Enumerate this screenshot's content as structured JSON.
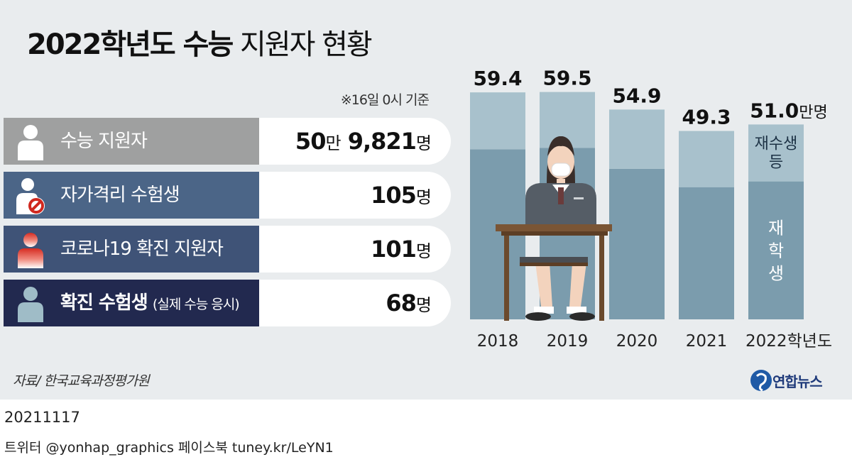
{
  "title": {
    "year": "2022학년도",
    "bold": "수능",
    "rest": "지원자 현황"
  },
  "basis_note": "※16일 0시 기준",
  "stats": [
    {
      "label": "수능 지원자",
      "value_prefix": "50",
      "value_prefix_unit": "만",
      "value": "9,821",
      "unit": "명",
      "color": "#9fa0a0"
    },
    {
      "label": "자가격리 수험생",
      "value": "105",
      "unit": "명",
      "color": "#4b6587"
    },
    {
      "label": "코로나19 확진 지원자",
      "value": "101",
      "unit": "명",
      "color": "#3f5377"
    },
    {
      "label": "확진 수험생",
      "note": "(실제 수능 응시)",
      "value": "68",
      "unit": "명",
      "color": "#22294f"
    }
  ],
  "chart_data": {
    "type": "bar",
    "categories": [
      "2018",
      "2019",
      "2020",
      "2021",
      "2022학년도"
    ],
    "totals": [
      59.4,
      59.5,
      54.9,
      49.3,
      51.0
    ],
    "total_labels": [
      "59.4",
      "59.5",
      "54.9",
      "49.3",
      "51.0"
    ],
    "total_unit": "만명",
    "series": [
      {
        "name": "재학생",
        "values": [
          44.5,
          44.9,
          39.4,
          34.6,
          36.1
        ],
        "color": "#7b9cad"
      },
      {
        "name": "재수생 등",
        "values": [
          14.9,
          14.6,
          15.5,
          14.7,
          14.9
        ],
        "color": "#a8c1cc"
      }
    ],
    "series_labels": {
      "lower": "재학생",
      "upper_line1": "재수생",
      "upper_line2": "등"
    },
    "ylim": [
      0,
      65
    ]
  },
  "source": "자료/ 한국교육과정평가원",
  "brand": "연합뉴스",
  "date": "20211117",
  "sns": "트위터 @yonhap_graphics  페이스북 tuney.kr/LeYN1"
}
